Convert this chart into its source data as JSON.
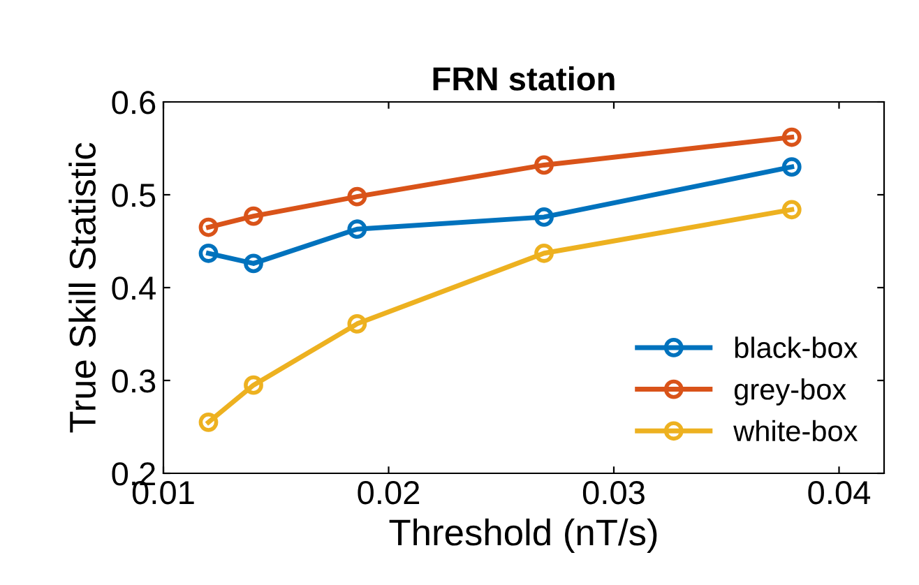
{
  "chart_data": {
    "type": "line",
    "title": "FRN station",
    "xlabel": "Threshold (nT/s)",
    "ylabel": "True Skill Statistic",
    "x": [
      0.012,
      0.014,
      0.0186,
      0.0269,
      0.0379
    ],
    "series": [
      {
        "name": "black-box",
        "color": "#0072bd",
        "values": [
          0.437,
          0.426,
          0.463,
          0.476,
          0.53
        ]
      },
      {
        "name": "grey-box",
        "color": "#d95319",
        "values": [
          0.465,
          0.477,
          0.498,
          0.532,
          0.562
        ]
      },
      {
        "name": "white-box",
        "color": "#edb120",
        "values": [
          0.255,
          0.295,
          0.361,
          0.437,
          0.484
        ]
      }
    ],
    "xlim": [
      0.01,
      0.042
    ],
    "xticks": [
      0.01,
      0.02,
      0.03,
      0.04
    ],
    "ylim": [
      0.2,
      0.6
    ],
    "yticks": [
      0.2,
      0.3,
      0.4,
      0.5,
      0.6
    ],
    "grid": false,
    "legend": "lower right",
    "marker": "circle",
    "line_style": "solid"
  }
}
